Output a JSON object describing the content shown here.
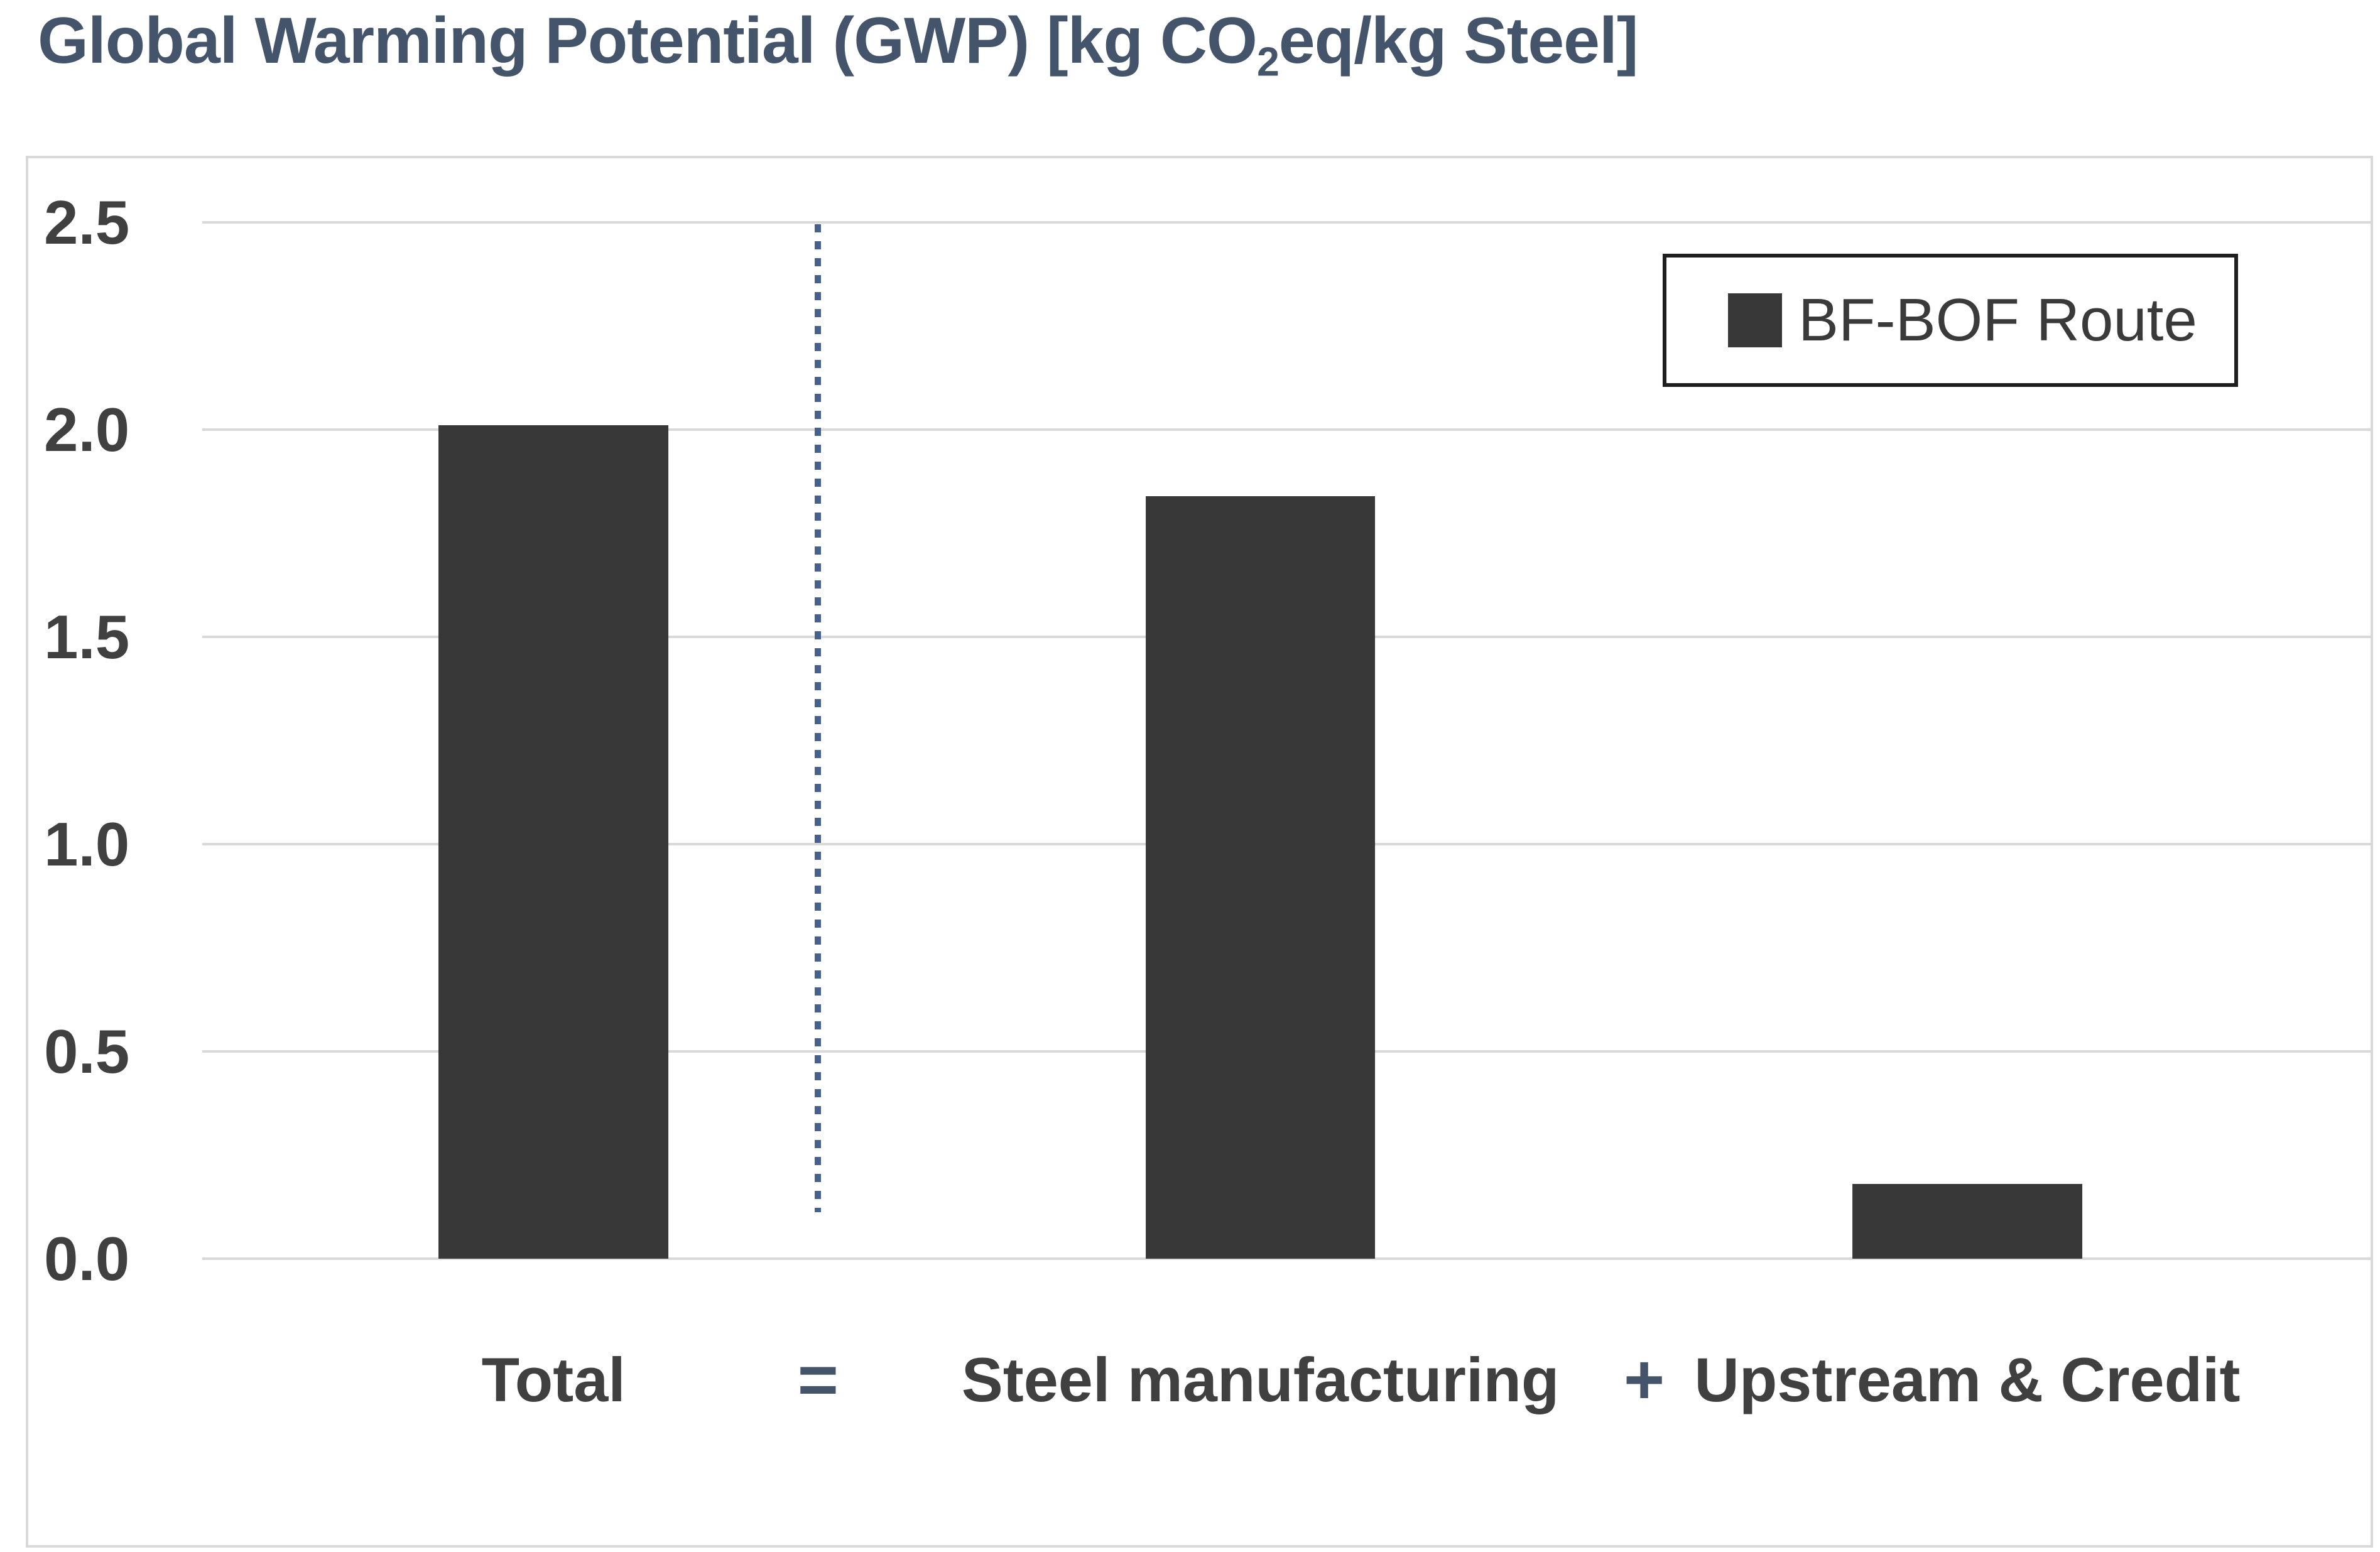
{
  "title": {
    "prefix": "Global Warming Potential (GWP) [kg CO",
    "subscript": "2",
    "suffix": "eq/kg Steel]"
  },
  "chart_data": {
    "type": "bar",
    "title": "Global Warming Potential (GWP) [kg CO2eq/kg Steel]",
    "categories": [
      "Total",
      "Steel manufacturing",
      "Upstream & Credit"
    ],
    "series": [
      {
        "name": "BF-BOF Route",
        "values": [
          2.01,
          1.84,
          0.18
        ]
      }
    ],
    "operators": {
      "equals": "=",
      "plus": "+"
    },
    "ylabel": "",
    "xlabel": "",
    "ylim": [
      0,
      2.5
    ],
    "ytick_step": 0.5,
    "ytick_labels": [
      "2.5",
      "2.0",
      "1.5",
      "1.0",
      "0.5",
      "0.0"
    ],
    "grid": true,
    "legend_position": "top-right",
    "annotations": [
      {
        "type": "vertical-dotted-divider",
        "between": [
          "Total",
          "Steel manufacturing"
        ],
        "note": "equation layout: Total = Steel manufacturing + Upstream & Credit"
      }
    ]
  },
  "colors": {
    "bar": "#383838",
    "title_text": "#44546A",
    "axis_text": "#404040",
    "operator_text": "#44546A",
    "gridline": "#D9D9D9",
    "frame_border": "#D9D9D9",
    "divider_dots": "#47618E",
    "legend_border": "#1F1F1F",
    "background": "#FFFFFF"
  }
}
